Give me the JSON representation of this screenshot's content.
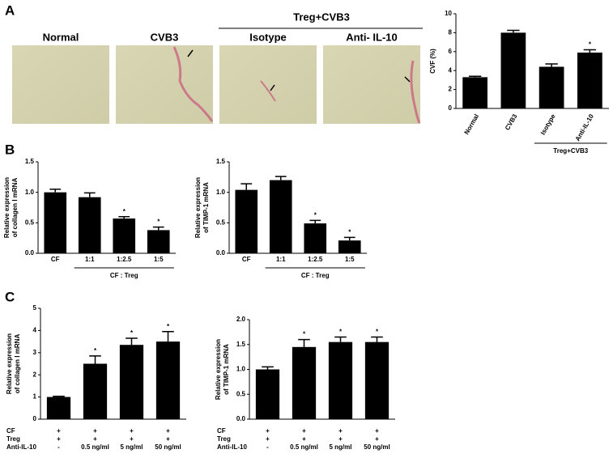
{
  "panels": [
    "A",
    "B",
    "C"
  ],
  "images": {
    "labels": [
      "Normal",
      "CVB3",
      "Isotype",
      "Anti- IL-10"
    ],
    "group": "Treg+CVB3"
  },
  "chart_data": [
    {
      "type": "bar",
      "ylabel": "CVF (%)",
      "categories": [
        "Normal",
        "CVB3",
        "Isotype",
        "Anti-IL-10"
      ],
      "values": [
        3.3,
        8.0,
        4.4,
        5.9
      ],
      "errors": [
        0.1,
        0.25,
        0.3,
        0.3
      ],
      "significance": [
        null,
        null,
        null,
        "*"
      ],
      "group": {
        "label": "Treg+CVB3",
        "from": 2,
        "to": 3
      },
      "color": "#000000",
      "ylim": [
        0,
        10
      ],
      "yticks": [
        0,
        2,
        4,
        6,
        8,
        10
      ]
    },
    {
      "type": "bar",
      "ylabel": [
        "Relative expression",
        "of collagen Ⅰ mRNA"
      ],
      "categories": [
        "CF",
        "1:1",
        "1:2.5",
        "1:5"
      ],
      "values": [
        1.0,
        0.92,
        0.57,
        0.38
      ],
      "errors": [
        0.05,
        0.07,
        0.03,
        0.05
      ],
      "significance": [
        null,
        null,
        "*",
        "*"
      ],
      "group": {
        "label": "CF : Treg",
        "from": 1,
        "to": 3
      },
      "color": "#000000",
      "ylim": [
        0,
        1.5
      ],
      "yticks": [
        {
          "value": 0,
          "label": "0.0"
        },
        {
          "value": 0.5,
          "label": "0.5"
        },
        {
          "value": 1,
          "label": "1.0"
        },
        {
          "value": 1.5,
          "label": "1.5"
        }
      ]
    },
    {
      "type": "bar",
      "ylabel": [
        "Relative expression",
        "of TIMP-1 mRNA"
      ],
      "categories": [
        "CF",
        "1:1",
        "1:2.5",
        "1:5"
      ],
      "values": [
        1.04,
        1.2,
        0.49,
        0.21
      ],
      "errors": [
        0.1,
        0.06,
        0.05,
        0.05
      ],
      "significance": [
        null,
        null,
        "*",
        "*"
      ],
      "group": {
        "label": "CF : Treg",
        "from": 1,
        "to": 3
      },
      "color": "#000000",
      "ylim": [
        0,
        1.5
      ],
      "yticks": [
        {
          "value": 0,
          "label": "0.0"
        },
        {
          "value": 0.5,
          "label": "0.5"
        },
        {
          "value": 1,
          "label": "1.0"
        },
        {
          "value": 1.5,
          "label": "1.5"
        }
      ]
    },
    {
      "type": "bar",
      "ylabel": [
        "Relative expression",
        "of collagen Ⅰ mRNA"
      ],
      "condition_rows": [
        {
          "name": "CF",
          "values": [
            "+",
            "+",
            "+",
            "+"
          ]
        },
        {
          "name": "Treg",
          "values": [
            "+",
            "+",
            "+",
            "+"
          ]
        },
        {
          "name": "Anti-IL-10",
          "values": [
            "-",
            "0.5 ng/ml",
            "5 ng/ml",
            "50 ng/ml"
          ]
        }
      ],
      "values": [
        1.0,
        2.5,
        3.35,
        3.5
      ],
      "errors": [
        0.03,
        0.35,
        0.3,
        0.45
      ],
      "significance": [
        null,
        "*",
        "*",
        "*"
      ],
      "color": "#000000",
      "ylim": [
        0,
        5
      ],
      "yticks": [
        0,
        1,
        2,
        3,
        4,
        5
      ]
    },
    {
      "type": "bar",
      "ylabel": [
        "Relative expression",
        "of TIMP-1 mRNA"
      ],
      "condition_rows": [
        {
          "name": "CF",
          "values": [
            "+",
            "+",
            "+",
            "+"
          ]
        },
        {
          "name": "Treg",
          "values": [
            "+",
            "+",
            "+",
            "+"
          ]
        },
        {
          "name": "Anti-IL-10",
          "values": [
            "-",
            "0.5 ng/ml",
            "5 ng/ml",
            "50 ng/ml"
          ]
        }
      ],
      "values": [
        1.0,
        1.45,
        1.55,
        1.55
      ],
      "errors": [
        0.05,
        0.15,
        0.1,
        0.1
      ],
      "significance": [
        null,
        "*",
        "*",
        "*"
      ],
      "color": "#000000",
      "ylim": [
        0,
        2
      ],
      "yticks": [
        {
          "value": 0,
          "label": "0.0"
        },
        {
          "value": 0.5,
          "label": "0.5"
        },
        {
          "value": 1,
          "label": "1.0"
        },
        {
          "value": 1.5,
          "label": "1.5"
        },
        {
          "value": 2,
          "label": "2.0"
        }
      ]
    }
  ]
}
